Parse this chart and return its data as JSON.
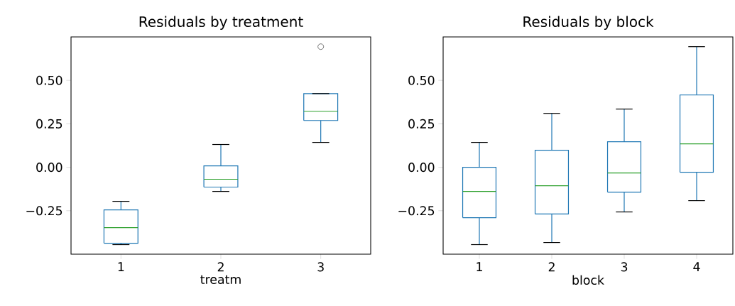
{
  "chart_data": [
    {
      "type": "box",
      "title": "Residuals by treatment",
      "xlabel": "treatm",
      "categories": [
        "1",
        "2",
        "3"
      ],
      "color": "#1f77b4",
      "ylim": [
        -0.5,
        0.75
      ],
      "yticks": [
        {
          "value": -0.25,
          "label": "−0.25"
        },
        {
          "value": 0,
          "label": "0.00"
        },
        {
          "value": 0.25,
          "label": "0.25"
        },
        {
          "value": 0.5,
          "label": "0.50"
        }
      ],
      "boxes": [
        {
          "low": -0.445,
          "q1": -0.437,
          "median": -0.347,
          "q3": -0.245,
          "high": -0.196
        },
        {
          "low": -0.139,
          "q1": -0.114,
          "median": -0.069,
          "q3": 0.008,
          "high": 0.131
        },
        {
          "low": 0.143,
          "q1": 0.269,
          "median": 0.322,
          "q3": 0.424,
          "high": 0.424,
          "outliers": [
            0.694
          ]
        }
      ]
    },
    {
      "type": "box",
      "title": "Residuals by block",
      "xlabel": "block",
      "categories": [
        "1",
        "2",
        "3",
        "4"
      ],
      "color": "#1f77b4",
      "ylim": [
        -0.5,
        0.75
      ],
      "yticks": [
        {
          "value": -0.25,
          "label": "−0.25"
        },
        {
          "value": 0,
          "label": "0.00"
        },
        {
          "value": 0.25,
          "label": "0.25"
        },
        {
          "value": 0.5,
          "label": "0.50"
        }
      ],
      "boxes": [
        {
          "low": -0.445,
          "q1": -0.29,
          "median": -0.139,
          "q3": 0.0,
          "high": 0.143
        },
        {
          "low": -0.433,
          "q1": -0.269,
          "median": -0.106,
          "q3": 0.098,
          "high": 0.31
        },
        {
          "low": -0.257,
          "q1": -0.143,
          "median": -0.033,
          "q3": 0.147,
          "high": 0.335
        },
        {
          "low": -0.192,
          "q1": -0.029,
          "median": 0.135,
          "q3": 0.416,
          "high": 0.694
        }
      ]
    }
  ]
}
